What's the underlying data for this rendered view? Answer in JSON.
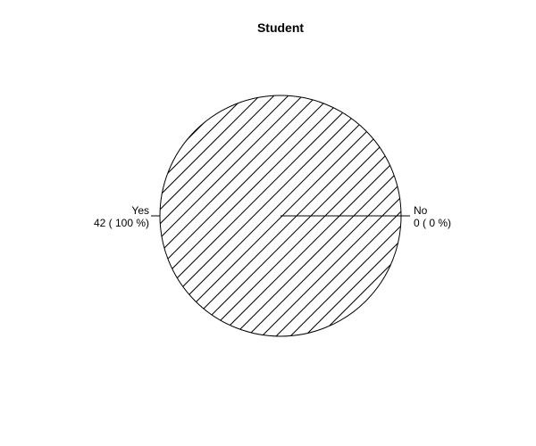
{
  "chart_data": {
    "type": "pie",
    "title": "Student",
    "slices": [
      {
        "label": "Yes",
        "value": 42,
        "detail": "42 ( 100 %)",
        "side": "left"
      },
      {
        "label": "No",
        "value": 0,
        "detail": "0 ( 0 %)",
        "side": "right"
      }
    ],
    "fill": "hatched diagonal lines",
    "colors": {
      "line": "#000000",
      "background": "#ffffff"
    },
    "legend": "none"
  }
}
